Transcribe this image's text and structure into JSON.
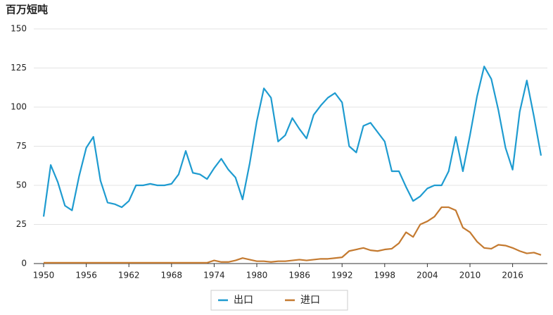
{
  "chart_data": {
    "type": "line",
    "title": "百万短吨",
    "x": [
      1950,
      1951,
      1952,
      1953,
      1954,
      1955,
      1956,
      1957,
      1958,
      1959,
      1960,
      1961,
      1962,
      1963,
      1964,
      1965,
      1966,
      1967,
      1968,
      1969,
      1970,
      1971,
      1972,
      1973,
      1974,
      1975,
      1976,
      1977,
      1978,
      1979,
      1980,
      1981,
      1982,
      1983,
      1984,
      1985,
      1986,
      1987,
      1988,
      1989,
      1990,
      1991,
      1992,
      1993,
      1994,
      1995,
      1996,
      1997,
      1998,
      1999,
      2000,
      2001,
      2002,
      2003,
      2004,
      2005,
      2006,
      2007,
      2008,
      2009,
      2010,
      2011,
      2012,
      2013,
      2014,
      2015,
      2016,
      2017,
      2018,
      2019,
      2020
    ],
    "series": [
      {
        "name": "出口",
        "color": "#1e9bd0",
        "values": [
          30,
          63,
          52,
          37,
          34,
          56,
          74,
          81,
          53,
          39,
          38,
          36,
          40,
          50,
          50,
          51,
          50,
          50,
          51,
          57,
          72,
          58,
          57,
          54,
          61,
          67,
          60,
          55,
          41,
          64,
          91,
          112,
          106,
          78,
          82,
          93,
          86,
          80,
          95,
          101,
          106,
          109,
          103,
          75,
          71,
          88,
          90,
          84,
          78,
          59,
          59,
          49,
          40,
          43,
          48,
          50,
          50,
          59,
          81,
          59,
          82,
          107,
          126,
          118,
          98,
          74,
          60,
          97,
          117,
          94,
          69
        ]
      },
      {
        "name": "进口",
        "color": "#c47a30",
        "values": [
          0.5,
          0.5,
          0.5,
          0.5,
          0.5,
          0.5,
          0.5,
          0.5,
          0.5,
          0.5,
          0.5,
          0.5,
          0.5,
          0.5,
          0.5,
          0.5,
          0.5,
          0.5,
          0.5,
          0.5,
          0.5,
          0.5,
          0.5,
          0.5,
          2,
          1,
          1,
          2,
          3.5,
          2.5,
          1.5,
          1.5,
          1,
          1.5,
          1.5,
          2,
          2.5,
          2,
          2.5,
          3,
          3,
          3.5,
          4,
          8,
          9,
          10,
          8.5,
          8,
          9,
          9.5,
          13,
          20,
          17,
          25,
          27,
          30,
          36,
          36,
          34,
          23,
          20,
          14,
          10,
          9.5,
          12,
          11.5,
          10,
          8,
          6.5,
          7,
          5.5
        ]
      }
    ],
    "xlim": [
      1950,
      2020
    ],
    "xticks": [
      1950,
      1956,
      1962,
      1968,
      1974,
      1980,
      1986,
      1992,
      1998,
      2004,
      2010,
      2016
    ],
    "ylim": [
      0,
      150
    ],
    "yticks": [
      0,
      25,
      50,
      75,
      100,
      125,
      150
    ],
    "grid": true
  }
}
